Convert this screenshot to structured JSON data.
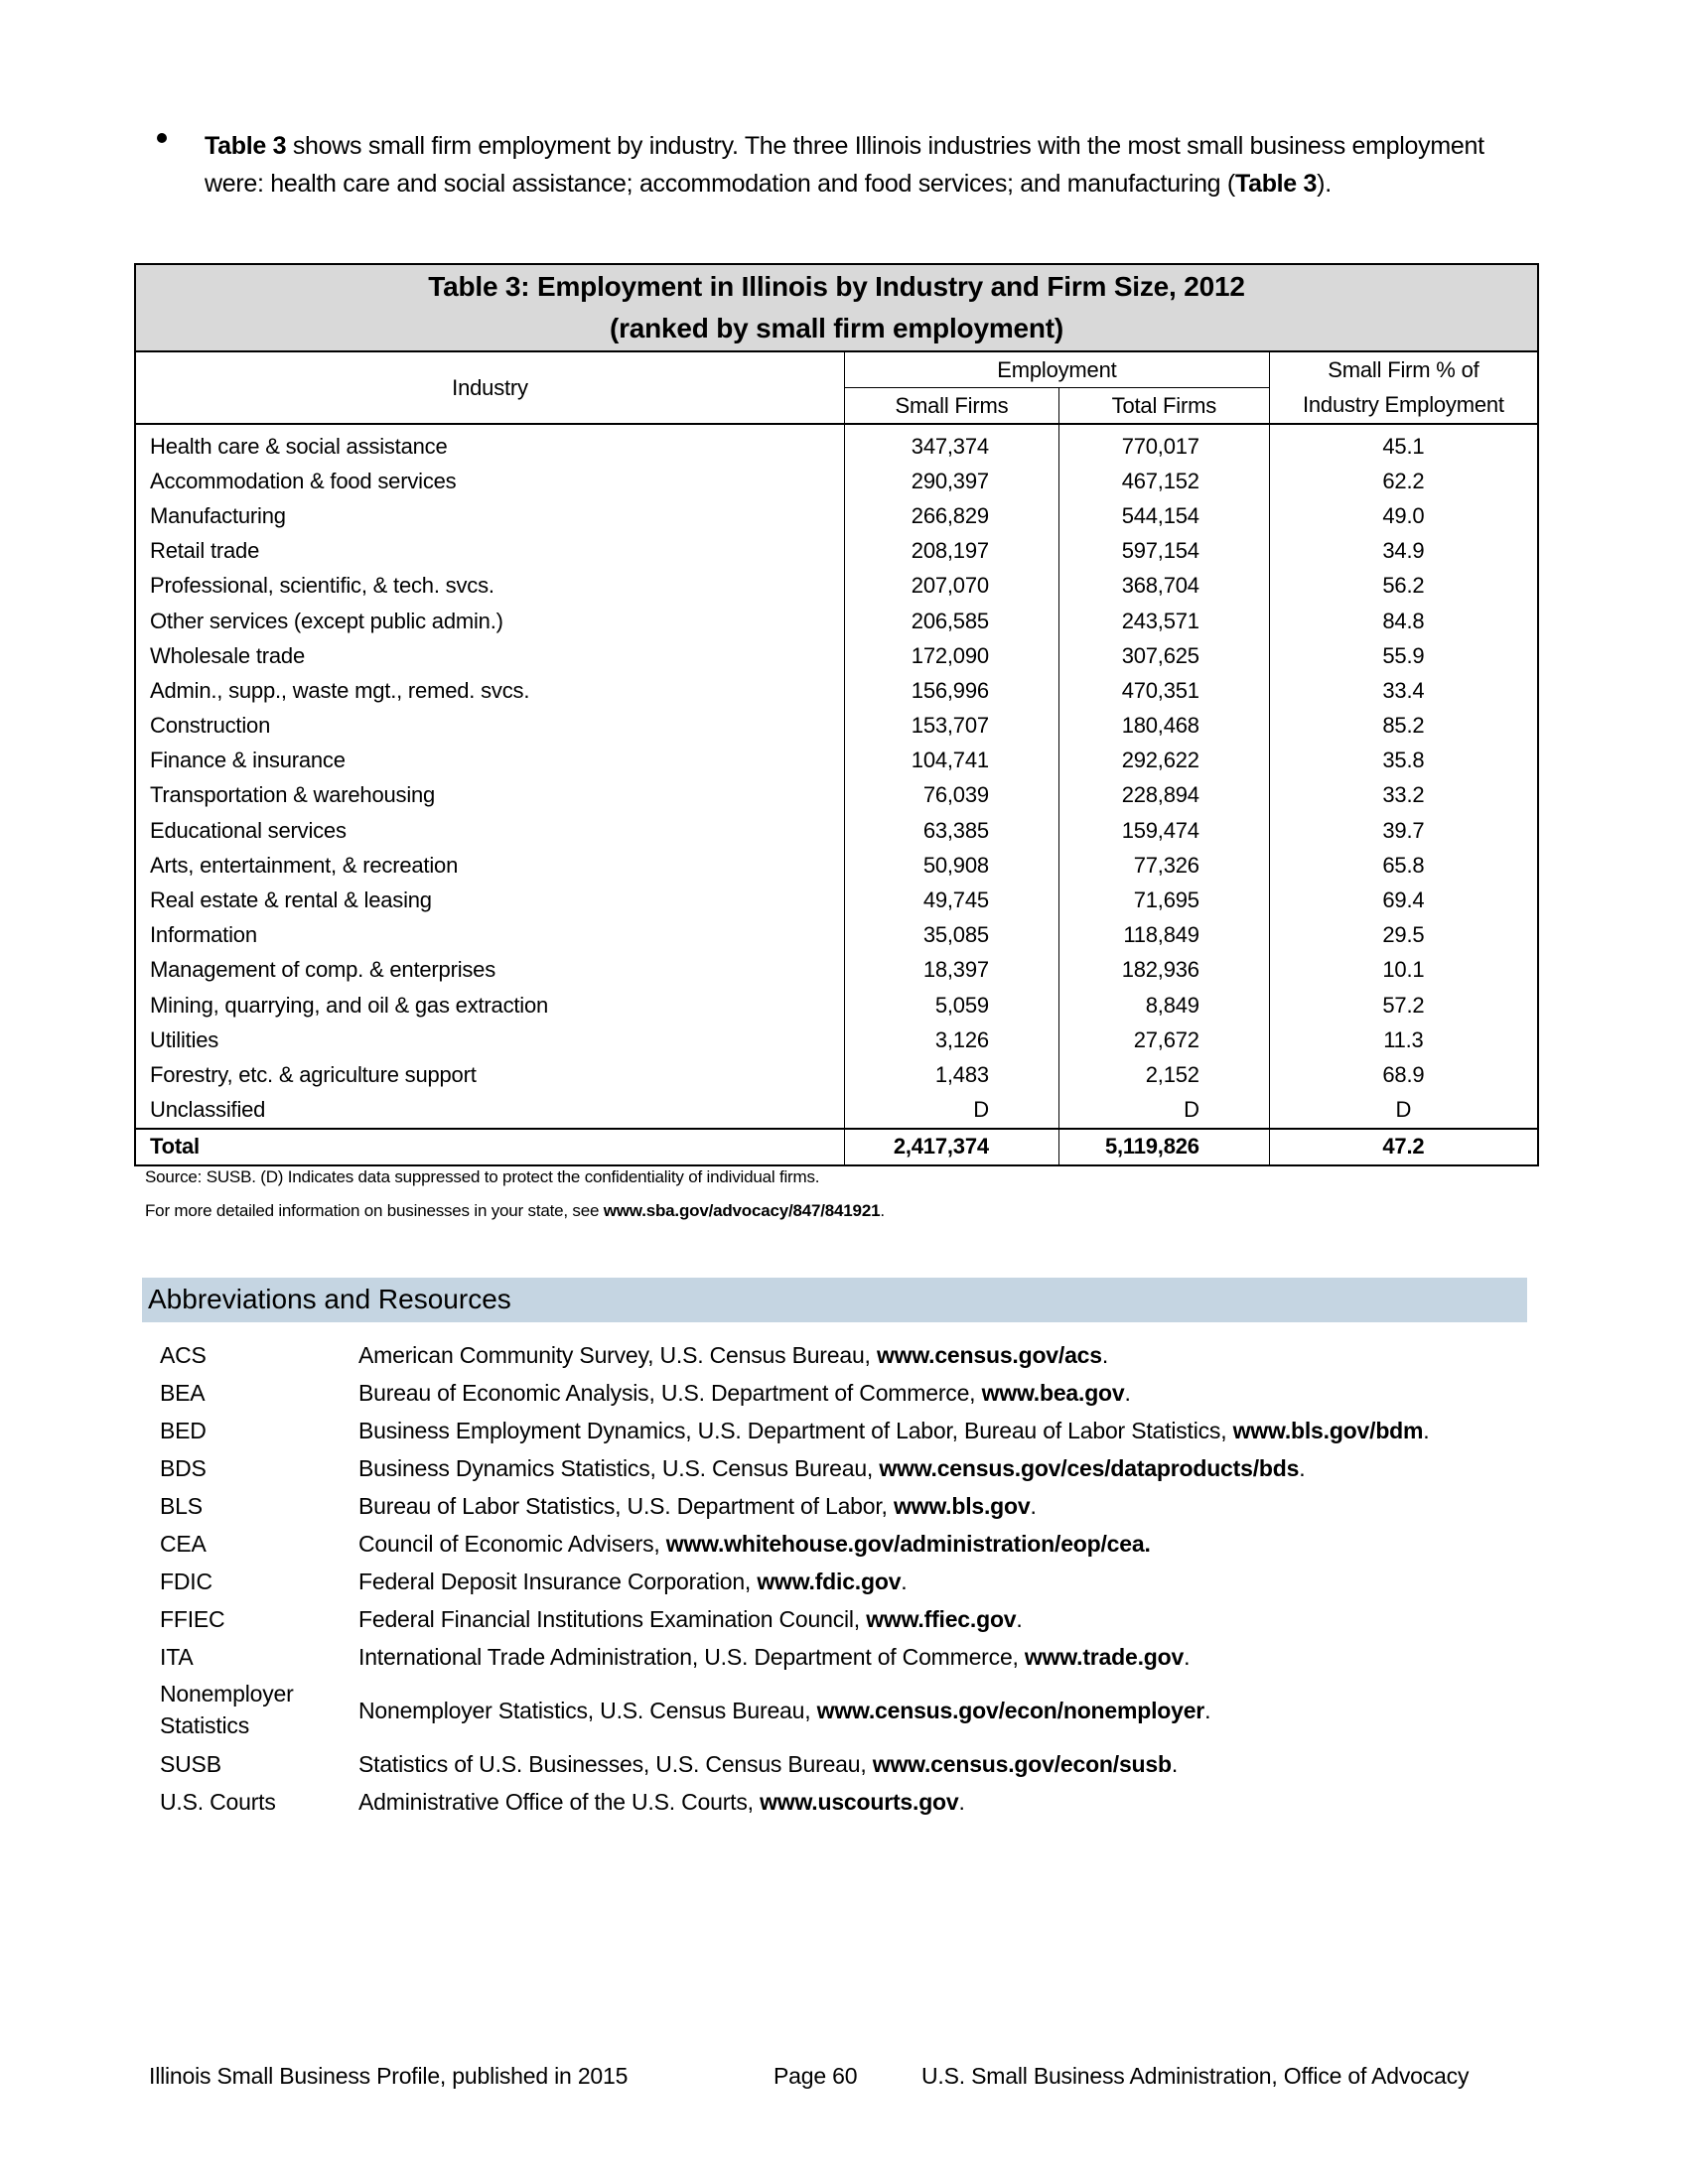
{
  "bullet": {
    "lead": "Table 3",
    "text": " shows small firm employment by industry. The three Illinois industries with the most small business employment were: health care and social assistance; accommodation and food services; and manufacturing (",
    "ref": "Table 3",
    "end": ")."
  },
  "table": {
    "title_line1": "Table 3: Employment in Illinois by Industry and Firm Size, 2012",
    "title_line2": "(ranked by small firm employment)",
    "headers": {
      "industry": "Industry",
      "employment": "Employment",
      "small_firms": "Small Firms",
      "total_firms": "Total Firms",
      "pct_line1": "Small Firm % of",
      "pct_line2": "Industry Employment"
    },
    "rows": [
      [
        "Health care & social assistance",
        "347,374",
        "770,017",
        "45.1"
      ],
      [
        "Accommodation & food services",
        "290,397",
        "467,152",
        "62.2"
      ],
      [
        "Manufacturing",
        "266,829",
        "544,154",
        "49.0"
      ],
      [
        "Retail trade",
        "208,197",
        "597,154",
        "34.9"
      ],
      [
        "Professional, scientific, & tech. svcs.",
        "207,070",
        "368,704",
        "56.2"
      ],
      [
        "Other services (except public admin.)",
        "206,585",
        "243,571",
        "84.8"
      ],
      [
        "Wholesale trade",
        "172,090",
        "307,625",
        "55.9"
      ],
      [
        "Admin., supp., waste mgt., remed. svcs.",
        "156,996",
        "470,351",
        "33.4"
      ],
      [
        "Construction",
        "153,707",
        "180,468",
        "85.2"
      ],
      [
        "Finance & insurance",
        "104,741",
        "292,622",
        "35.8"
      ],
      [
        "Transportation & warehousing",
        "76,039",
        "228,894",
        "33.2"
      ],
      [
        "Educational services",
        "63,385",
        "159,474",
        "39.7"
      ],
      [
        "Arts, entertainment, & recreation",
        "50,908",
        "77,326",
        "65.8"
      ],
      [
        "Real estate & rental & leasing",
        "49,745",
        "71,695",
        "69.4"
      ],
      [
        "Information",
        "35,085",
        "118,849",
        "29.5"
      ],
      [
        "Management of comp. & enterprises",
        "18,397",
        "182,936",
        "10.1"
      ],
      [
        "Mining, quarrying, and oil & gas extraction",
        "5,059",
        "8,849",
        "57.2"
      ],
      [
        "Utilities",
        "3,126",
        "27,672",
        "11.3"
      ],
      [
        "Forestry, etc. & agriculture support",
        "1,483",
        "2,152",
        "68.9"
      ],
      [
        "Unclassified",
        "D",
        "D",
        "D"
      ]
    ],
    "total": [
      "Total",
      "2,417,374",
      "5,119,826",
      "47.2"
    ],
    "source_note": "Source: SUSB. (D) Indicates data suppressed to protect the confidentiality of individual firms.",
    "more_info": "For more detailed information on businesses in your state, see ",
    "more_info_link": "www.sba.gov/advocacy/847/841921",
    "more_info_end": "."
  },
  "abbreviations": {
    "heading": "Abbreviations and Resources",
    "items": [
      {
        "abbr": "ACS",
        "desc": "American Community Survey, U.S. Census Bureau, ",
        "url": "www.census.gov/acs",
        "end": "."
      },
      {
        "abbr": "BEA",
        "desc": "Bureau of Economic Analysis, U.S. Department of Commerce, ",
        "url": "www.bea.gov",
        "end": "."
      },
      {
        "abbr": "BED",
        "desc": "Business Employment Dynamics, U.S. Department of Labor, Bureau of Labor Statistics, ",
        "url": "www.bls.gov/bdm",
        "end": "."
      },
      {
        "abbr": "BDS",
        "desc": "Business Dynamics Statistics, U.S. Census Bureau, ",
        "url": "www.census.gov/ces/dataproducts/bds",
        "end": "."
      },
      {
        "abbr": "BLS",
        "desc": "Bureau of Labor Statistics, U.S. Department of Labor, ",
        "url": "www.bls.gov",
        "end": "."
      },
      {
        "abbr": "CEA",
        "desc": "Council of Economic Advisers, ",
        "url": "www.whitehouse.gov/administration/eop/cea.",
        "end": ""
      },
      {
        "abbr": "FDIC",
        "desc": "Federal Deposit Insurance Corporation, ",
        "url": "www.fdic.gov",
        "end": "."
      },
      {
        "abbr": "FFIEC",
        "desc": "Federal Financial Institutions Examination Council, ",
        "url": "www.ffiec.gov",
        "end": "."
      },
      {
        "abbr": "ITA",
        "desc": "International Trade Administration, U.S. Department of Commerce, ",
        "url": "www.trade.gov",
        "end": "."
      },
      {
        "abbr": "Nonemployer Statistics",
        "desc": "Nonemployer Statistics, U.S. Census Bureau, ",
        "url": "www.census.gov/econ/nonemployer",
        "end": "."
      },
      {
        "abbr": "SUSB",
        "desc": "Statistics of U.S. Businesses, U.S. Census Bureau, ",
        "url": "www.census.gov/econ/susb",
        "end": "."
      },
      {
        "abbr": "U.S. Courts",
        "desc": "Administrative Office of the U.S. Courts, ",
        "url": "www.uscourts.gov",
        "end": "."
      }
    ]
  },
  "footer": {
    "left": "Illinois Small Business Profile, published in 2015",
    "page": "Page 60",
    "right": "U.S. Small Business Administration, Office of Advocacy"
  }
}
